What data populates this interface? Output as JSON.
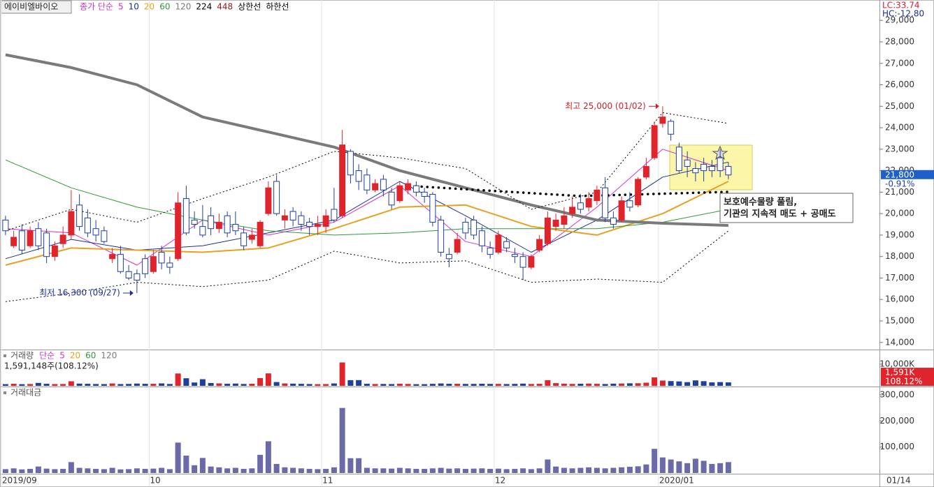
{
  "header": {
    "stock_name": "에이비엘바이오",
    "lc": "LC:33.74",
    "hc": "HC:-12.80",
    "last_date": "01/14"
  },
  "note": [
    "보호예수물량 풀림,",
    "기관의 지속적 매도 + 공매도"
  ],
  "chart_data": [
    {
      "type": "candlestick",
      "ma_label": "종가 단순",
      "ma_label_color": "#d030d0",
      "up_color": "#e0242c",
      "down_color": "#1f3f9f",
      "ylim": [
        13700,
        29950
      ],
      "yticks": [
        {
          "value": 14000,
          "label": "14,000"
        },
        {
          "value": 15000,
          "label": "15,000"
        },
        {
          "value": 16000,
          "label": "16,000"
        },
        {
          "value": 17000,
          "label": "17,000"
        },
        {
          "value": 18000,
          "label": "18,000"
        },
        {
          "value": 19000,
          "label": "19,000"
        },
        {
          "value": 20000,
          "label": "20,000"
        },
        {
          "value": 21000,
          "label": "21,000"
        },
        {
          "value": 22000,
          "label": "22,000"
        },
        {
          "value": 23000,
          "label": "23,000"
        },
        {
          "value": 24000,
          "label": "24,000"
        },
        {
          "value": 25000,
          "label": "25,000"
        },
        {
          "value": 26000,
          "label": "26,000"
        },
        {
          "value": 27000,
          "label": "27,000"
        },
        {
          "value": 28000,
          "label": "28,000"
        },
        {
          "value": 29000,
          "label": "29,000"
        }
      ],
      "open": [
        19700,
        18500,
        19200,
        18500,
        19300,
        19100,
        18000,
        18600,
        19000,
        20400,
        19800,
        19300,
        19200,
        17900,
        18100,
        17300,
        17200,
        17900,
        17300,
        18200,
        17700,
        17900,
        20700,
        19700,
        19400,
        19900,
        19300,
        19900,
        19500,
        19100,
        18800,
        18500,
        20000,
        21500,
        19700,
        20100,
        19900,
        19600,
        19400,
        19400,
        20200,
        19900,
        22900,
        22000,
        21800,
        21100,
        21600,
        21000,
        20600,
        21100,
        21300,
        21000,
        20900,
        19700,
        18100,
        18200,
        19600,
        19700,
        19200,
        18400,
        18200,
        18700,
        18100,
        18000,
        17500,
        18300,
        18600,
        19400,
        19500,
        20000,
        20500,
        20300,
        20600,
        21200,
        19800,
        19700,
        20600,
        20400,
        21700,
        22600,
        24200,
        24300,
        23100,
        22500,
        22100,
        22300,
        22200,
        22600,
        22200
      ],
      "high": [
        19900,
        19200,
        19500,
        19400,
        19600,
        19300,
        18700,
        19400,
        21100,
        20900,
        20200,
        19700,
        19400,
        18400,
        18500,
        17600,
        17400,
        18100,
        18300,
        18500,
        18000,
        21000,
        21300,
        20100,
        20400,
        20300,
        20000,
        20100,
        20100,
        19400,
        19300,
        19700,
        21500,
        21800,
        20200,
        20300,
        20100,
        19800,
        19900,
        20200,
        21200,
        23900,
        23000,
        22300,
        22100,
        21600,
        21800,
        21200,
        21500,
        21600,
        21500,
        21200,
        21000,
        19900,
        18400,
        19100,
        19800,
        19900,
        19400,
        18700,
        19200,
        18900,
        18400,
        18200,
        18100,
        19000,
        20100,
        20000,
        20300,
        20800,
        20900,
        21000,
        21300,
        21700,
        20100,
        20800,
        21000,
        21700,
        22600,
        24300,
        25000,
        24400,
        23300,
        22900,
        22400,
        22600,
        22500,
        23000,
        22400
      ],
      "low": [
        19000,
        18400,
        18100,
        18400,
        18300,
        17700,
        17800,
        18400,
        18800,
        19200,
        18900,
        18700,
        18600,
        17700,
        17200,
        16900,
        16300,
        17000,
        17200,
        17400,
        17200,
        17800,
        19000,
        19300,
        18900,
        19000,
        19100,
        18900,
        19000,
        18300,
        18600,
        18400,
        19900,
        19900,
        19300,
        19400,
        19200,
        19000,
        19000,
        19100,
        19600,
        19800,
        21400,
        21100,
        20900,
        21000,
        20800,
        20200,
        20500,
        20900,
        20800,
        20500,
        19400,
        18000,
        17500,
        18100,
        18800,
        18800,
        18200,
        17900,
        18100,
        18200,
        17700,
        16900,
        17400,
        18200,
        18500,
        19200,
        19300,
        19800,
        20000,
        20100,
        20400,
        19600,
        19300,
        19600,
        20100,
        20300,
        21600,
        22500,
        24000,
        23400,
        21900,
        21700,
        21500,
        21500,
        21700,
        21700,
        21600
      ],
      "close": [
        19200,
        18900,
        18300,
        19200,
        18500,
        18000,
        18500,
        19000,
        20100,
        19400,
        19100,
        19000,
        18700,
        18100,
        17300,
        17000,
        16900,
        17200,
        18000,
        17700,
        17500,
        20500,
        19100,
        19500,
        19000,
        19300,
        19600,
        19100,
        19200,
        18500,
        19000,
        19600,
        21200,
        20000,
        19900,
        19700,
        19500,
        19400,
        19500,
        19900,
        19700,
        23200,
        21800,
        21500,
        21100,
        21400,
        21100,
        20400,
        21300,
        21400,
        21000,
        20800,
        19600,
        18200,
        17900,
        18800,
        19100,
        19000,
        18500,
        18100,
        19000,
        18400,
        18000,
        17500,
        18000,
        18800,
        19800,
        19700,
        19900,
        20300,
        20200,
        20700,
        21100,
        19800,
        19500,
        20600,
        20300,
        21600,
        22200,
        24100,
        24500,
        23700,
        22000,
        22200,
        21900,
        22000,
        22000,
        22000,
        21800
      ],
      "series": [
        {
          "name": "5",
          "color": "#d030d0",
          "width": 1,
          "x": [
            0,
            8,
            16,
            24,
            32,
            40,
            48,
            56,
            64,
            72,
            80,
            88
          ],
          "values": [
            19300,
            19100,
            17600,
            19700,
            19000,
            19600,
            21300,
            18700,
            18000,
            20300,
            23000,
            22000
          ]
        },
        {
          "name": "10",
          "color": "#1c2f8f",
          "width": 1,
          "x": [
            0,
            8,
            16,
            24,
            32,
            40,
            48,
            56,
            64,
            72,
            80,
            88
          ],
          "values": [
            17900,
            18800,
            18300,
            18500,
            19100,
            19700,
            21500,
            19900,
            18200,
            19700,
            21700,
            22400
          ]
        },
        {
          "name": "20",
          "color": "#e8a020",
          "width": 2,
          "x": [
            0,
            8,
            16,
            24,
            32,
            40,
            48,
            56,
            64,
            72,
            80,
            88
          ],
          "values": [
            17600,
            18400,
            18300,
            18200,
            18400,
            19300,
            20300,
            20400,
            19400,
            19000,
            20000,
            21500
          ]
        },
        {
          "name": "60",
          "color": "#2e9a3a",
          "width": 1,
          "x": [
            0,
            8,
            16,
            24,
            32,
            40,
            48,
            56,
            64,
            72,
            80,
            88
          ],
          "values": [
            22500,
            21200,
            20300,
            19700,
            19200,
            19000,
            19100,
            19300,
            19300,
            19300,
            19600,
            20200
          ]
        },
        {
          "name": "120",
          "color": "#7a7a7a",
          "width": 4,
          "x": [
            0,
            8,
            16,
            24,
            32,
            40,
            48,
            56,
            64,
            72,
            80,
            88
          ],
          "values": [
            27400,
            26800,
            26000,
            24500,
            23800,
            23100,
            22000,
            21200,
            20400,
            19700,
            19550,
            19450
          ]
        },
        {
          "name": "224",
          "color": "#000000",
          "width": 1,
          "x": [],
          "values": []
        },
        {
          "name": "448",
          "color": "#8b1a1a",
          "width": 1,
          "x": [],
          "values": []
        },
        {
          "name": "상한선",
          "color": "#000000",
          "width": 1,
          "dash": "2,3",
          "x": [
            0,
            8,
            16,
            24,
            32,
            40,
            48,
            56,
            64,
            72,
            80,
            88
          ],
          "values": [
            19200,
            20200,
            19600,
            20700,
            21700,
            22900,
            22600,
            22100,
            20200,
            21000,
            24700,
            24200
          ]
        },
        {
          "name": "하한선",
          "color": "#000000",
          "width": 1,
          "dash": "2,3",
          "x": [
            0,
            8,
            16,
            24,
            32,
            40,
            48,
            56,
            64,
            72,
            80,
            88
          ],
          "values": [
            15900,
            16300,
            16800,
            16600,
            16900,
            18250,
            17700,
            17800,
            16800,
            16950,
            16800,
            19200
          ]
        }
      ],
      "annotations": [
        {
          "text": "최고 25,000 (01/02)",
          "index": 80,
          "value": 25000,
          "color": "#d0202a"
        },
        {
          "text": "최저 16,300 (09/27)",
          "index": 16,
          "value": 16300,
          "color": "#1a2f9a"
        }
      ],
      "current": {
        "value": 21800,
        "label": "21,800"
      },
      "change": "-0.91%"
    },
    {
      "type": "bar",
      "title": "거래량",
      "legend": [
        {
          "text": "단순",
          "color": "#d030d0"
        },
        {
          "text": "5",
          "color": "#d030d0"
        },
        {
          "text": "20",
          "color": "#e8a020"
        },
        {
          "text": "60",
          "color": "#2e9a3a"
        },
        {
          "text": "120",
          "color": "#7a7a7a"
        }
      ],
      "info": "1,591,148주(108.12%)",
      "ylim": [
        0,
        16100
      ],
      "yticks": [
        {
          "value": 10000,
          "label": "10,000K"
        }
      ],
      "values": [
        780,
        950,
        760,
        840,
        1350,
        940,
        810,
        840,
        2100,
        1030,
        940,
        840,
        800,
        1100,
        810,
        880,
        1060,
        930,
        940,
        1130,
        860,
        5700,
        3500,
        1540,
        3050,
        1300,
        1120,
        950,
        1050,
        860,
        950,
        3570,
        5750,
        1750,
        1110,
        1010,
        920,
        830,
        770,
        810,
        1110,
        10800,
        2620,
        2650,
        950,
        840,
        860,
        810,
        980,
        880,
        760,
        770,
        920,
        1100,
        950,
        950,
        880,
        890,
        970,
        890,
        900,
        820,
        900,
        1030,
        850,
        930,
        2620,
        1250,
        1000,
        880,
        970,
        1040,
        940,
        830,
        1010,
        1080,
        1170,
        1200,
        1450,
        3900,
        2430,
        2190,
        2040,
        1710,
        2510,
        2140,
        1590,
        1730,
        1591.148
      ],
      "current": {
        "value": 1591.148,
        "label": "1,591K"
      },
      "change": "108.12%"
    },
    {
      "type": "bar",
      "title": "거래대금",
      "color": "#6a6aa8",
      "ylim": [
        0,
        326800
      ],
      "yticks": [
        {
          "value": 100000,
          "label": "100,000"
        },
        {
          "value": 200000,
          "label": "200,000"
        },
        {
          "value": 300000,
          "label": "300,000"
        }
      ],
      "values": [
        15000,
        18000,
        14000,
        16000,
        25000,
        17000,
        15000,
        16000,
        42000,
        20000,
        18000,
        16000,
        15000,
        20000,
        14000,
        15000,
        18000,
        16000,
        17000,
        20000,
        15000,
        117000,
        67000,
        30000,
        58000,
        25000,
        22000,
        18000,
        20000,
        16000,
        18000,
        70000,
        122000,
        35000,
        22000,
        20000,
        18000,
        16000,
        15000,
        16000,
        22000,
        250000,
        57000,
        57000,
        20000,
        18000,
        18000,
        17000,
        20000,
        18000,
        16000,
        16000,
        18000,
        20000,
        17000,
        18000,
        16000,
        17000,
        18000,
        16000,
        17000,
        15000,
        16000,
        18000,
        15000,
        18000,
        52000,
        25000,
        20000,
        18000,
        20000,
        22000,
        20000,
        18000,
        20000,
        22000,
        24000,
        26000,
        33000,
        93000,
        60000,
        52000,
        45000,
        38000,
        55000,
        47000,
        35000,
        38000,
        42000
      ],
      "x_labels": [
        {
          "index": 0,
          "label": "2019/09"
        },
        {
          "index": 18,
          "label": "10"
        },
        {
          "index": 39,
          "label": "11"
        },
        {
          "index": 60,
          "label": "12"
        },
        {
          "index": 80,
          "label": "2020/01"
        }
      ]
    }
  ]
}
